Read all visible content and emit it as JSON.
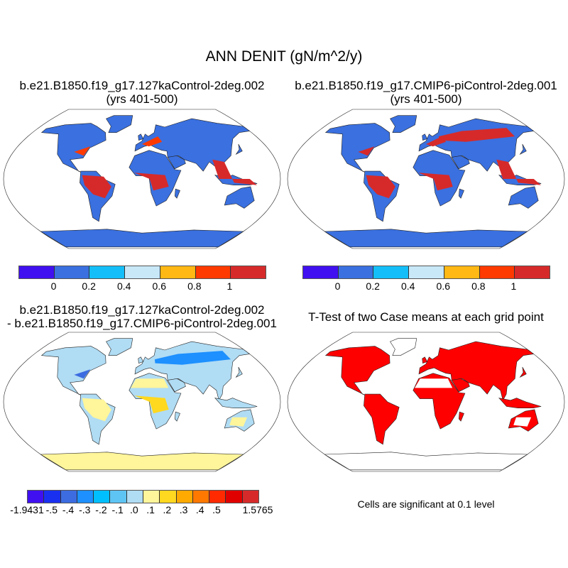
{
  "figure_title": "ANN DENIT (gN/m^2/y)",
  "panels": [
    {
      "title_line1": "b.e21.B1850.f19_g17.127kaControl-2deg.002",
      "title_line2": "(yrs 401-500)"
    },
    {
      "title_line1": "b.e21.B1850.f19_g17.CMIP6-piControl-2deg.001",
      "title_line2": "(yrs 401-500)"
    },
    {
      "title_line1": "b.e21.B1850.f19_g17.127kaControl-2deg.002",
      "title_line2": "- b.e21.B1850.f19_g17.CMIP6-piControl-2deg.001"
    },
    {
      "title_line1": "T-Test of two Case means at each grid point"
    }
  ],
  "colorbar_main": {
    "colors": [
      "#4010f0",
      "#3a70e0",
      "#14bef8",
      "#c8e8f8",
      "#ffb814",
      "#ff3a00",
      "#d62a2a"
    ],
    "labels": [
      "0",
      "0.2",
      "0.4",
      "0.6",
      "0.8",
      "1"
    ]
  },
  "colorbar_diff": {
    "colors": [
      "#4010f0",
      "#1a30f0",
      "#3c6ce0",
      "#1e90ff",
      "#00bfff",
      "#5ec4f4",
      "#b0dcf4",
      "#fff59a",
      "#ffd820",
      "#ffaa00",
      "#ff7800",
      "#ff2a00",
      "#e00000",
      "#d62a2a"
    ],
    "labels": [
      "-1.9431",
      "-.5",
      "-.4",
      "-.3",
      "-.2",
      "-.1",
      ".0",
      ".1",
      ".2",
      ".3",
      ".4",
      ".5",
      "1.5765"
    ]
  },
  "significance_note": "Cells are significant at 0.1 level",
  "significant_color": "#ff0000"
}
